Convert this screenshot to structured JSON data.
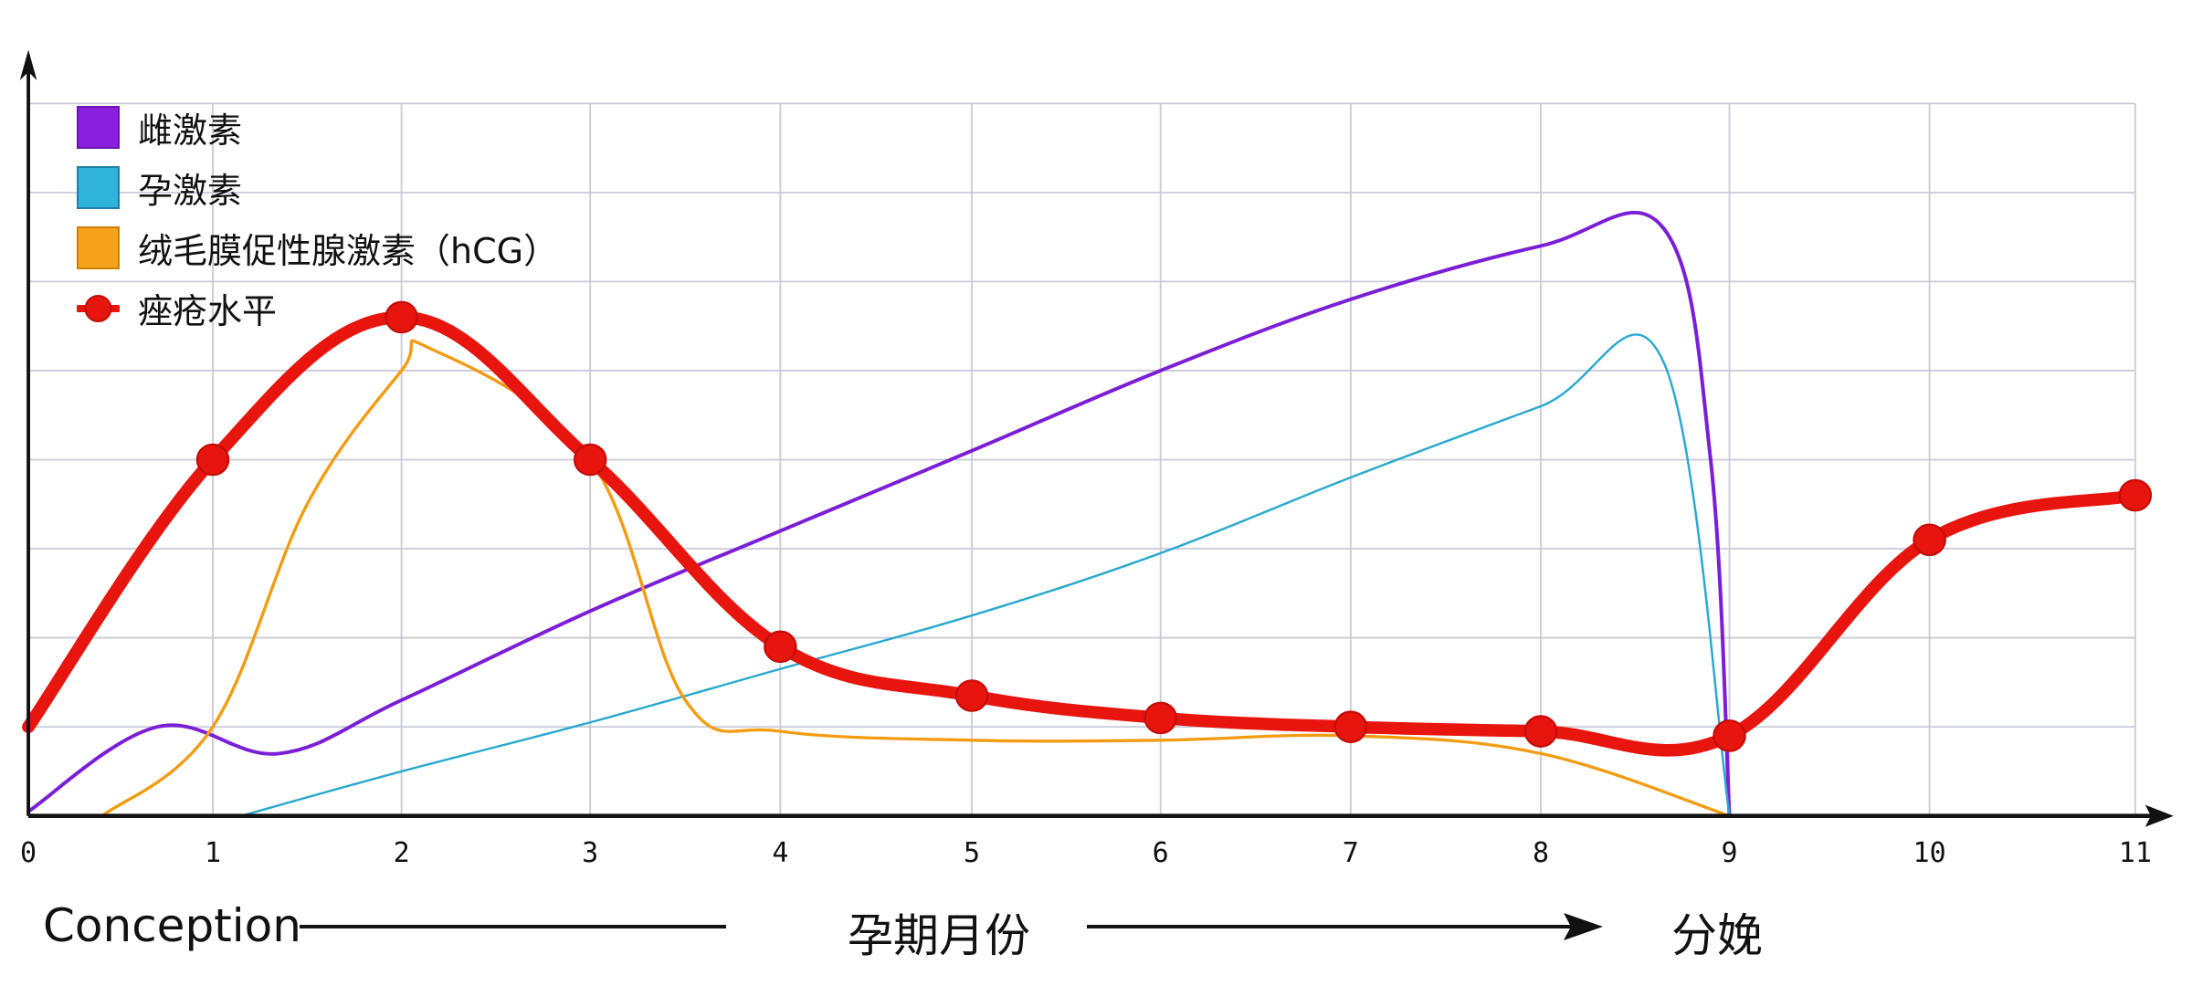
{
  "chart_data": {
    "type": "line",
    "title": "",
    "xlabel": "孕期月份",
    "ylabel": "",
    "x_ticks": [
      "0",
      "1",
      "2",
      "3",
      "4",
      "5",
      "6",
      "7",
      "8",
      "9",
      "10",
      "11"
    ],
    "xlim": [
      0,
      11
    ],
    "ylim": [
      0,
      8
    ],
    "grid": true,
    "legend_position": "upper left",
    "annotations": {
      "start": "Conception",
      "middle": "孕期月份",
      "end": "分娩"
    },
    "series": [
      {
        "name": "雌激素",
        "color": "#7b1fd6",
        "x": [
          0,
          0.7,
          1.35,
          2,
          3,
          4,
          5,
          6,
          7,
          8,
          8.65,
          8.9,
          9
        ],
        "values": [
          0.05,
          1.0,
          0.7,
          1.3,
          2.3,
          3.2,
          4.1,
          5.0,
          5.8,
          6.4,
          6.6,
          4.0,
          0
        ]
      },
      {
        "name": "孕激素",
        "color": "#2aa9cf",
        "x": [
          1.15,
          2,
          3,
          4,
          5,
          6,
          7,
          8,
          8.65,
          9
        ],
        "values": [
          0,
          0.5,
          1.05,
          1.65,
          2.25,
          2.95,
          3.8,
          4.6,
          5.1,
          0
        ]
      },
      {
        "name": "绒毛膜促性腺激素（hCG）",
        "color": "#f39c12",
        "x": [
          0.4,
          1,
          1.5,
          2,
          2.15,
          3,
          3.5,
          4,
          5,
          6,
          7,
          8,
          9
        ],
        "values": [
          0,
          1.0,
          3.5,
          5.0,
          5.25,
          4.0,
          1.3,
          0.95,
          0.85,
          0.85,
          0.9,
          0.7,
          0
        ]
      },
      {
        "name": "痤疮水平",
        "color": "#e8150f",
        "marker": "circle",
        "x": [
          0,
          1,
          2,
          3,
          4,
          5,
          6,
          7,
          8,
          9,
          10,
          11
        ],
        "values": [
          1.0,
          4.0,
          5.6,
          4.0,
          1.9,
          1.35,
          1.1,
          1.0,
          0.95,
          0.9,
          3.1,
          3.6
        ]
      }
    ]
  },
  "legend": {
    "items": [
      {
        "label": "雌激素",
        "color": "#8a1fe0"
      },
      {
        "label": "孕激素",
        "color": "#2fb3d8"
      },
      {
        "label": "绒毛膜促性腺激素（hCG）",
        "color": "#f7a21b"
      },
      {
        "label": "痤疮水平",
        "color": "#e8150f"
      }
    ]
  },
  "axis": {
    "ticks": [
      "0",
      "1",
      "2",
      "3",
      "4",
      "5",
      "6",
      "7",
      "8",
      "9",
      "10",
      "11"
    ]
  },
  "labels": {
    "conception": "Conception",
    "months": "孕期月份",
    "delivery": "分娩"
  }
}
